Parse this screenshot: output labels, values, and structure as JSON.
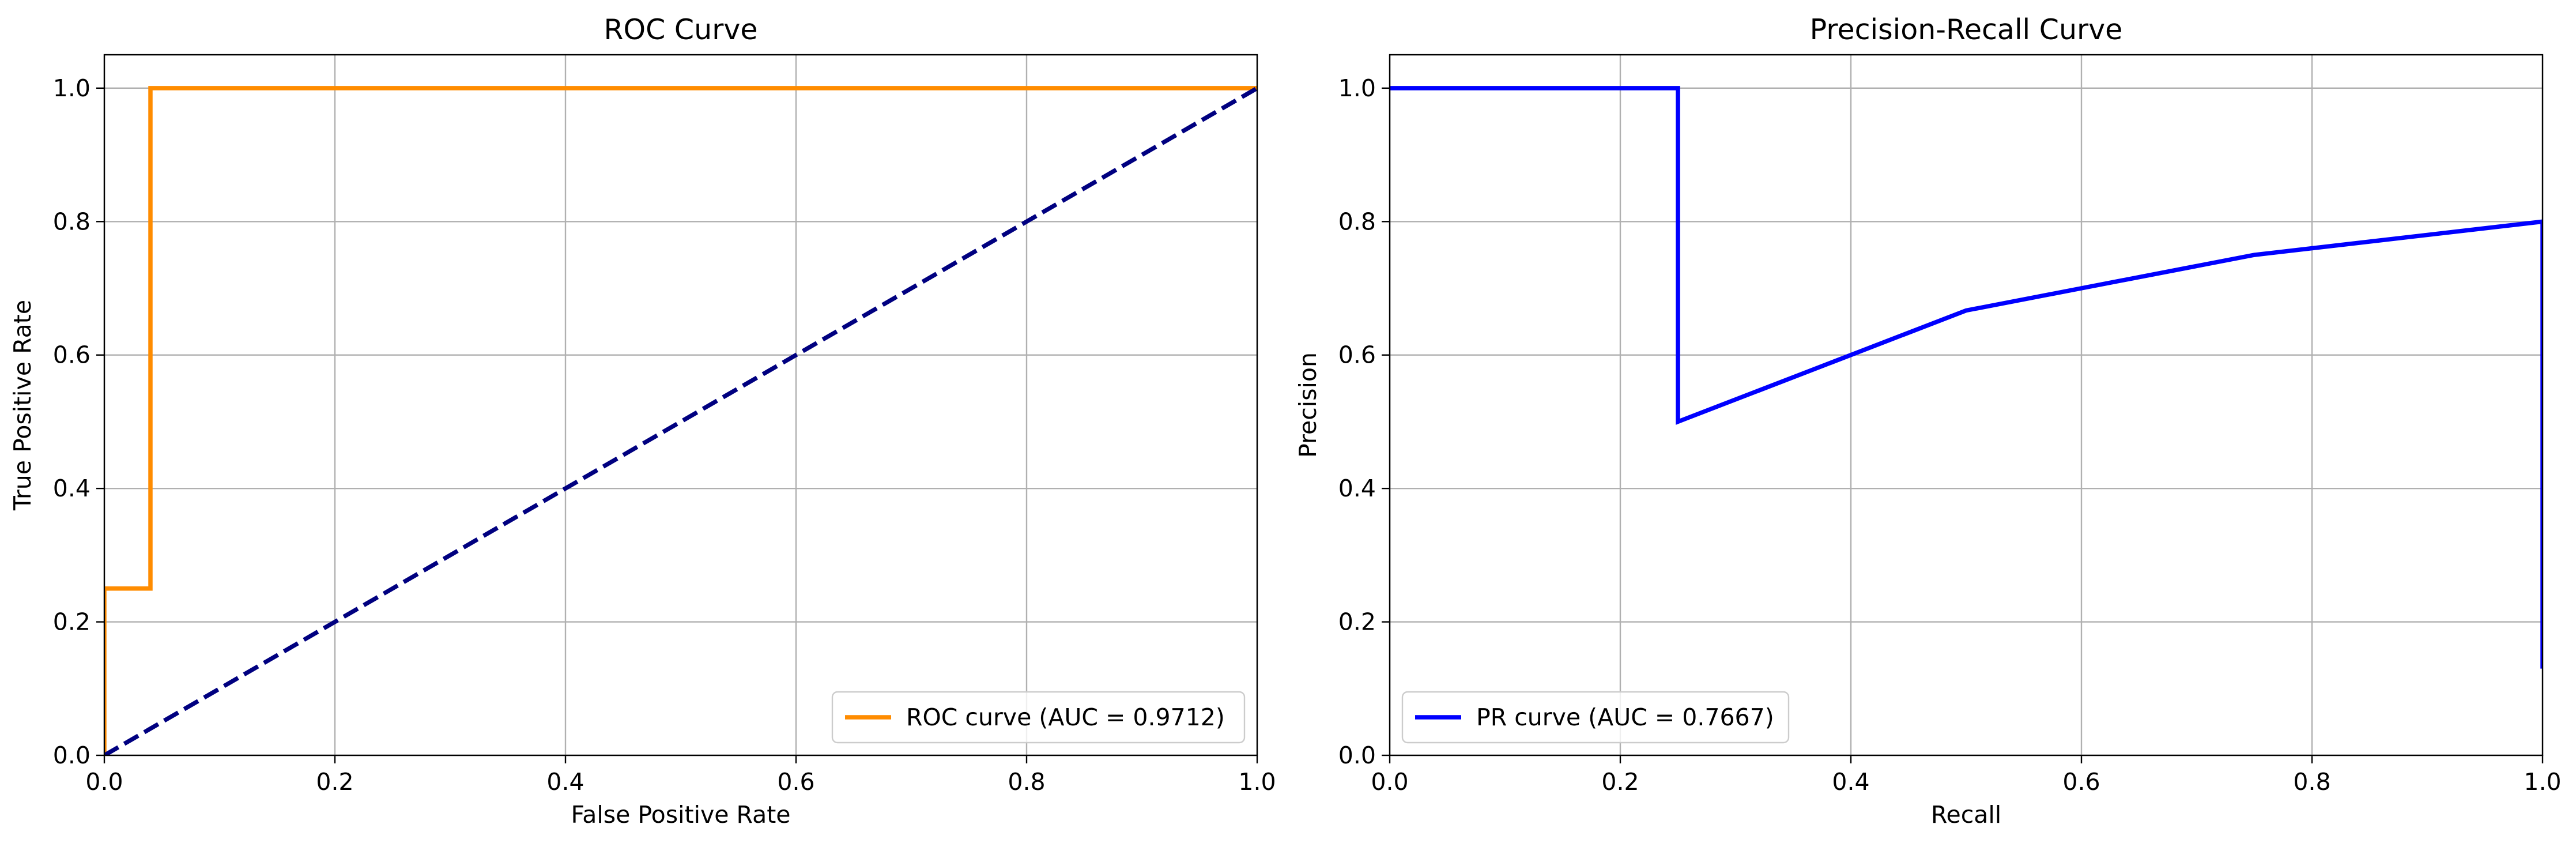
{
  "chart_data": [
    {
      "type": "line",
      "title": "ROC Curve",
      "xlabel": "False Positive Rate",
      "ylabel": "True Positive Rate",
      "xlim": [
        0.0,
        1.0
      ],
      "ylim": [
        0.0,
        1.05
      ],
      "xticks": [
        "0.0",
        "0.2",
        "0.4",
        "0.6",
        "0.8",
        "1.0"
      ],
      "yticks": [
        "0.0",
        "0.2",
        "0.4",
        "0.6",
        "0.8",
        "1.0"
      ],
      "grid": true,
      "legend_position": "lower-right",
      "series": [
        {
          "name": "ROC curve (AUC = 0.9712)",
          "color": "#ff8c00",
          "style": "solid",
          "x": [
            0.0,
            0.0,
            0.04,
            0.04,
            1.0
          ],
          "y": [
            0.0,
            0.25,
            0.25,
            1.0,
            1.0
          ]
        },
        {
          "color": "#000080",
          "style": "dashed",
          "x": [
            0.0,
            1.0
          ],
          "y": [
            0.0,
            1.0
          ]
        }
      ]
    },
    {
      "type": "line",
      "title": "Precision-Recall Curve",
      "xlabel": "Recall",
      "ylabel": "Precision",
      "xlim": [
        0.0,
        1.0
      ],
      "ylim": [
        0.0,
        1.05
      ],
      "xticks": [
        "0.0",
        "0.2",
        "0.4",
        "0.6",
        "0.8",
        "1.0"
      ],
      "yticks": [
        "0.0",
        "0.2",
        "0.4",
        "0.6",
        "0.8",
        "1.0"
      ],
      "grid": true,
      "legend_position": "lower-left",
      "series": [
        {
          "name": "PR curve (AUC = 0.7667)",
          "color": "#0000ff",
          "style": "solid",
          "x": [
            0.0,
            0.25,
            0.25,
            0.5,
            0.75,
            1.0,
            1.0
          ],
          "y": [
            1.0,
            1.0,
            0.5,
            0.6667,
            0.75,
            0.8,
            0.13
          ]
        }
      ]
    }
  ]
}
